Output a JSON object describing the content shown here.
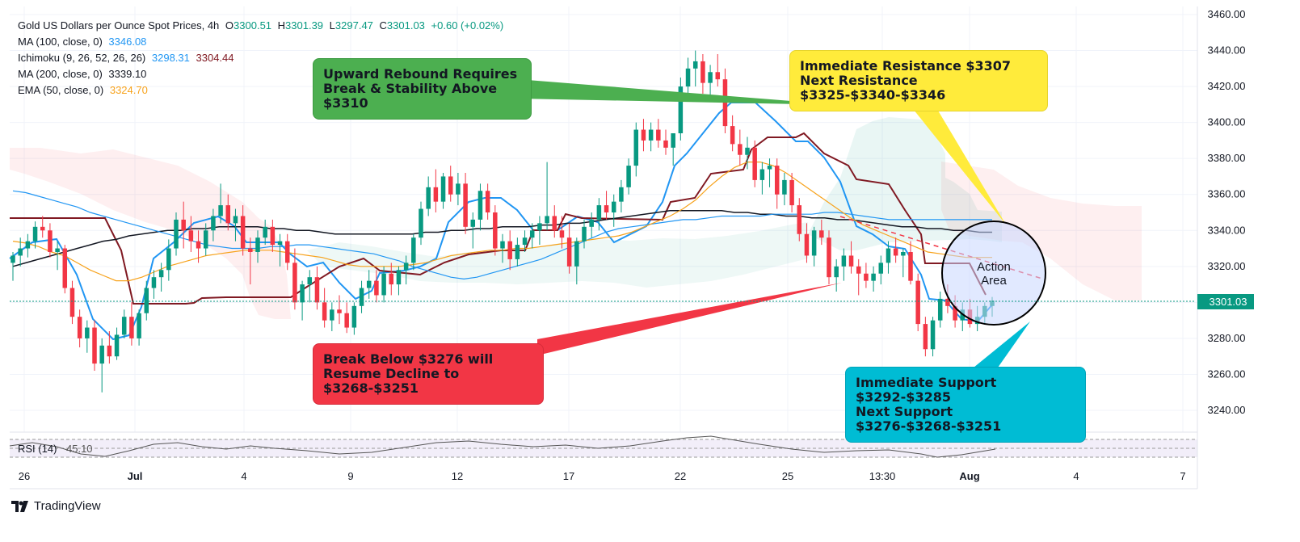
{
  "header": {
    "symbol_line": "Gold US Dollars per Ounce Spot Prices, 4h",
    "ohlc": {
      "open_label": "O",
      "open": "3300.51",
      "high_label": "H",
      "high": "3301.39",
      "low_label": "L",
      "low": "3297.47",
      "close_label": "C",
      "close": "3301.03",
      "change": "+0.60 (+0.02%)"
    }
  },
  "indicators": [
    {
      "label": "MA (100, close, 0)",
      "values": [
        "3346.08"
      ],
      "colors": [
        "#2196f3"
      ]
    },
    {
      "label": "Ichimoku (9, 26, 52, 26, 26)",
      "values": [
        "3298.31",
        "3304.44"
      ],
      "colors": [
        "#2196f3",
        "#801922"
      ]
    },
    {
      "label": "MA (200, close, 0)",
      "values": [
        "3339.10"
      ],
      "colors": [
        "#131722"
      ]
    },
    {
      "label": "EMA (50, close, 0)",
      "values": [
        "3324.70"
      ],
      "colors": [
        "#f7a21b"
      ]
    }
  ],
  "rsi": {
    "label": "RSI (14)",
    "value": "45.10"
  },
  "price_axis": {
    "ticks": [
      "3460.00",
      "3440.00",
      "3420.00",
      "3400.00",
      "3380.00",
      "3360.00",
      "3340.00",
      "3320.00",
      "3300.00",
      "3280.00",
      "3260.00",
      "3240.00"
    ],
    "current_price_label": "3301.03"
  },
  "time_axis": {
    "labels": [
      "26",
      "Jul",
      "4",
      "9",
      "12",
      "17",
      "22",
      "25",
      "13:30",
      "Aug",
      "4",
      "7"
    ],
    "bold_labels": [
      "Jul",
      "Aug"
    ]
  },
  "callouts": {
    "upward": "Upward Rebound Requires\nBreak & Stability Above $3310",
    "resistance": "Immediate Resistance $3307\nNext Resistance $3325-$3340-$3346",
    "break_below": "Break Below $3276 will\nResume Decline to $3268-$3251",
    "support": "Immediate Support $3292-$3285\nNext Support $3276-$3268-$3251",
    "action_area": "Action\nArea"
  },
  "colors": {
    "up": "#089981",
    "down": "#f23645",
    "tenkan": "#2196f3",
    "kijun": "#801922",
    "ma100": "#2196f3",
    "ma200": "#131722",
    "ema50": "#f7a21b",
    "green_callout": "#4caf50",
    "yellow_callout": "#ffeb3b",
    "red_callout": "#f23645",
    "cyan_callout": "#00bcd4"
  },
  "branding": {
    "logo_text": "TradingView"
  },
  "chart_data": {
    "type": "candlestick",
    "title": "Gold US Dollars per Ounce Spot Prices, 4h",
    "ylim": [
      3230,
      3462
    ],
    "x_tick_labels": [
      "26",
      "Jul",
      "4",
      "9",
      "12",
      "17",
      "22",
      "25",
      "13:30",
      "Aug",
      "4",
      "7"
    ],
    "y_tick_labels": [
      "3460.00",
      "3440.00",
      "3420.00",
      "3400.00",
      "3380.00",
      "3360.00",
      "3340.00",
      "3320.00",
      "3300.00",
      "3280.00",
      "3260.00",
      "3240.00"
    ],
    "candles": [
      [
        3322,
        3328,
        3312,
        3326
      ],
      [
        3326,
        3336,
        3320,
        3330
      ],
      [
        3330,
        3338,
        3325,
        3334
      ],
      [
        3334,
        3345,
        3330,
        3342
      ],
      [
        3342,
        3348,
        3336,
        3340
      ],
      [
        3340,
        3344,
        3325,
        3328
      ],
      [
        3328,
        3334,
        3318,
        3330
      ],
      [
        3330,
        3332,
        3305,
        3308
      ],
      [
        3308,
        3312,
        3288,
        3292
      ],
      [
        3292,
        3296,
        3275,
        3280
      ],
      [
        3280,
        3290,
        3272,
        3286
      ],
      [
        3286,
        3290,
        3262,
        3266
      ],
      [
        3266,
        3280,
        3250,
        3276
      ],
      [
        3276,
        3284,
        3266,
        3270
      ],
      [
        3270,
        3286,
        3268,
        3282
      ],
      [
        3282,
        3296,
        3280,
        3292
      ],
      [
        3292,
        3300,
        3276,
        3280
      ],
      [
        3280,
        3296,
        3276,
        3294
      ],
      [
        3294,
        3312,
        3290,
        3308
      ],
      [
        3308,
        3318,
        3302,
        3314
      ],
      [
        3314,
        3322,
        3306,
        3318
      ],
      [
        3318,
        3335,
        3312,
        3330
      ],
      [
        3330,
        3350,
        3326,
        3346
      ],
      [
        3346,
        3356,
        3330,
        3340
      ],
      [
        3340,
        3348,
        3328,
        3334
      ],
      [
        3334,
        3340,
        3322,
        3330
      ],
      [
        3330,
        3344,
        3326,
        3340
      ],
      [
        3340,
        3352,
        3334,
        3348
      ],
      [
        3348,
        3366,
        3344,
        3354
      ],
      [
        3354,
        3360,
        3340,
        3344
      ],
      [
        3344,
        3352,
        3334,
        3348
      ],
      [
        3348,
        3354,
        3326,
        3330
      ],
      [
        3330,
        3336,
        3310,
        3328
      ],
      [
        3328,
        3340,
        3322,
        3336
      ],
      [
        3336,
        3346,
        3332,
        3342
      ],
      [
        3342,
        3346,
        3328,
        3332
      ],
      [
        3332,
        3338,
        3320,
        3334
      ],
      [
        3334,
        3338,
        3318,
        3322
      ],
      [
        3322,
        3330,
        3296,
        3300
      ],
      [
        3300,
        3312,
        3290,
        3310
      ],
      [
        3310,
        3318,
        3300,
        3314
      ],
      [
        3314,
        3320,
        3296,
        3300
      ],
      [
        3300,
        3308,
        3286,
        3290
      ],
      [
        3290,
        3300,
        3284,
        3296
      ],
      [
        3296,
        3304,
        3288,
        3294
      ],
      [
        3294,
        3300,
        3283,
        3286
      ],
      [
        3286,
        3300,
        3282,
        3298
      ],
      [
        3298,
        3312,
        3294,
        3308
      ],
      [
        3308,
        3318,
        3302,
        3312
      ],
      [
        3312,
        3318,
        3300,
        3304
      ],
      [
        3304,
        3320,
        3300,
        3316
      ],
      [
        3316,
        3322,
        3304,
        3310
      ],
      [
        3310,
        3320,
        3304,
        3318
      ],
      [
        3318,
        3326,
        3310,
        3322
      ],
      [
        3322,
        3338,
        3318,
        3336
      ],
      [
        3336,
        3356,
        3332,
        3352
      ],
      [
        3352,
        3370,
        3348,
        3364
      ],
      [
        3364,
        3374,
        3350,
        3356
      ],
      [
        3356,
        3372,
        3352,
        3370
      ],
      [
        3370,
        3376,
        3356,
        3360
      ],
      [
        3360,
        3372,
        3354,
        3366
      ],
      [
        3366,
        3372,
        3338,
        3342
      ],
      [
        3342,
        3350,
        3330,
        3346
      ],
      [
        3346,
        3366,
        3340,
        3362
      ],
      [
        3362,
        3366,
        3346,
        3350
      ],
      [
        3350,
        3354,
        3326,
        3330
      ],
      [
        3330,
        3338,
        3322,
        3334
      ],
      [
        3334,
        3340,
        3318,
        3324
      ],
      [
        3324,
        3336,
        3320,
        3332
      ],
      [
        3332,
        3340,
        3328,
        3336
      ],
      [
        3336,
        3344,
        3330,
        3340
      ],
      [
        3340,
        3348,
        3332,
        3344
      ],
      [
        3344,
        3378,
        3340,
        3348
      ],
      [
        3348,
        3354,
        3336,
        3340
      ],
      [
        3340,
        3348,
        3330,
        3336
      ],
      [
        3336,
        3344,
        3316,
        3320
      ],
      [
        3320,
        3336,
        3310,
        3334
      ],
      [
        3334,
        3346,
        3330,
        3342
      ],
      [
        3342,
        3350,
        3336,
        3346
      ],
      [
        3346,
        3358,
        3340,
        3354
      ],
      [
        3354,
        3362,
        3346,
        3350
      ],
      [
        3350,
        3360,
        3342,
        3356
      ],
      [
        3356,
        3368,
        3350,
        3364
      ],
      [
        3364,
        3380,
        3360,
        3376
      ],
      [
        3376,
        3400,
        3370,
        3396
      ],
      [
        3396,
        3402,
        3384,
        3390
      ],
      [
        3390,
        3400,
        3384,
        3396
      ],
      [
        3396,
        3402,
        3386,
        3390
      ],
      [
        3390,
        3396,
        3382,
        3386
      ],
      [
        3386,
        3392,
        3376,
        3394
      ],
      [
        3394,
        3425,
        3390,
        3420
      ],
      [
        3420,
        3436,
        3412,
        3430
      ],
      [
        3430,
        3440,
        3420,
        3434
      ],
      [
        3434,
        3438,
        3416,
        3422
      ],
      [
        3422,
        3432,
        3414,
        3428
      ],
      [
        3428,
        3438,
        3420,
        3424
      ],
      [
        3424,
        3430,
        3394,
        3398
      ],
      [
        3398,
        3404,
        3384,
        3388
      ],
      [
        3388,
        3396,
        3376,
        3382
      ],
      [
        3382,
        3392,
        3374,
        3386
      ],
      [
        3386,
        3390,
        3364,
        3368
      ],
      [
        3368,
        3378,
        3360,
        3374
      ],
      [
        3374,
        3380,
        3364,
        3376
      ],
      [
        3376,
        3380,
        3352,
        3360
      ],
      [
        3360,
        3372,
        3354,
        3368
      ],
      [
        3368,
        3372,
        3350,
        3354
      ],
      [
        3354,
        3358,
        3334,
        3338
      ],
      [
        3338,
        3344,
        3322,
        3326
      ],
      [
        3326,
        3342,
        3320,
        3340
      ],
      [
        3340,
        3346,
        3332,
        3336
      ],
      [
        3336,
        3340,
        3310,
        3314
      ],
      [
        3314,
        3324,
        3306,
        3320
      ],
      [
        3320,
        3330,
        3312,
        3326
      ],
      [
        3326,
        3334,
        3316,
        3320
      ],
      [
        3320,
        3324,
        3304,
        3316
      ],
      [
        3316,
        3322,
        3308,
        3312
      ],
      [
        3312,
        3320,
        3306,
        3316
      ],
      [
        3316,
        3326,
        3310,
        3322
      ],
      [
        3322,
        3334,
        3316,
        3330
      ],
      [
        3330,
        3336,
        3322,
        3326
      ],
      [
        3326,
        3330,
        3314,
        3328
      ],
      [
        3328,
        3334,
        3310,
        3312
      ],
      [
        3312,
        3316,
        3284,
        3288
      ],
      [
        3288,
        3292,
        3270,
        3274
      ],
      [
        3274,
        3292,
        3270,
        3290
      ],
      [
        3290,
        3306,
        3286,
        3302
      ],
      [
        3302,
        3310,
        3294,
        3298
      ],
      [
        3298,
        3304,
        3286,
        3290
      ],
      [
        3290,
        3300,
        3284,
        3296
      ],
      [
        3296,
        3302,
        3286,
        3288
      ],
      [
        3288,
        3298,
        3284,
        3292
      ],
      [
        3292,
        3300,
        3288,
        3298
      ],
      [
        3298,
        3303,
        3292,
        3301
      ]
    ],
    "series": [
      {
        "name": "MA (100, close, 0)",
        "values": [
          3362,
          3361,
          3359,
          3357,
          3355,
          3353,
          3350,
          3348,
          3346,
          3344,
          3342,
          3340,
          3338,
          3336,
          3334,
          3332,
          3331,
          3330,
          3330,
          3330,
          3331,
          3331,
          3332,
          3332,
          3331,
          3330,
          3329,
          3328,
          3327,
          3325,
          3323,
          3320,
          3318,
          3316,
          3314,
          3313,
          3314,
          3316,
          3318,
          3320,
          3322,
          3324,
          3327,
          3330,
          3333,
          3336,
          3339,
          3341,
          3342,
          3343,
          3344,
          3345,
          3346,
          3346,
          3347,
          3348,
          3348,
          3348,
          3348,
          3349,
          3349,
          3349,
          3349,
          3350,
          3350,
          3349,
          3348,
          3347,
          3346,
          3346,
          3346,
          3346,
          3346,
          3346,
          3346,
          3346,
          3346
        ]
      },
      {
        "name": "MA (200, close, 0)",
        "values": [
          3320,
          3322,
          3324,
          3326,
          3328,
          3330,
          3332,
          3334,
          3335,
          3337,
          3338,
          3339,
          3340,
          3340,
          3341,
          3341,
          3342,
          3342,
          3342,
          3342,
          3341,
          3341,
          3340,
          3340,
          3339,
          3338,
          3338,
          3338,
          3338,
          3338,
          3338,
          3338,
          3339,
          3339,
          3340,
          3340,
          3341,
          3341,
          3342,
          3342,
          3342,
          3343,
          3343,
          3344,
          3344,
          3345,
          3346,
          3347,
          3348,
          3349,
          3350,
          3351,
          3351,
          3351,
          3351,
          3351,
          3350,
          3350,
          3349,
          3349,
          3348,
          3348,
          3347,
          3347,
          3346,
          3346,
          3345,
          3344,
          3343,
          3342,
          3342,
          3341,
          3341,
          3340,
          3340,
          3339,
          3339
        ]
      },
      {
        "name": "EMA (50, close, 0)",
        "values": [
          3334,
          3333,
          3331,
          3328,
          3326,
          3322,
          3318,
          3315,
          3312,
          3312,
          3314,
          3317,
          3320,
          3322,
          3324,
          3326,
          3327,
          3328,
          3329,
          3329,
          3329,
          3328,
          3327,
          3326,
          3325,
          3323,
          3321,
          3320,
          3320,
          3320,
          3320,
          3321,
          3322,
          3324,
          3326,
          3327,
          3328,
          3329,
          3329,
          3330,
          3330,
          3331,
          3332,
          3333,
          3334,
          3335,
          3336,
          3337,
          3339,
          3342,
          3345,
          3348,
          3352,
          3357,
          3364,
          3370,
          3375,
          3378,
          3378,
          3376,
          3372,
          3367,
          3362,
          3357,
          3352,
          3347,
          3343,
          3340,
          3337,
          3334,
          3331,
          3328,
          3327,
          3326,
          3325,
          3325,
          3325
        ]
      }
    ]
  }
}
